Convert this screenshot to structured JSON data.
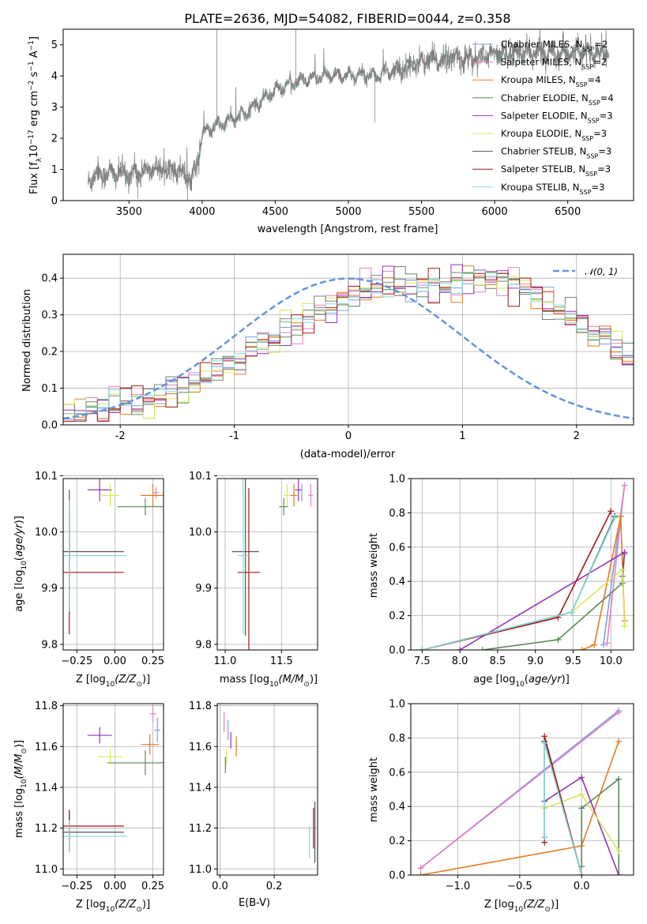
{
  "colors": {
    "c_miles": "#7fa0e0",
    "s_miles": "#e67fc2",
    "k_miles": "#e37b1e",
    "c_elodie": "#5a8a5a",
    "s_elodie": "#9434b4",
    "k_elodie": "#d6e85a",
    "c_stelib": "#808080",
    "s_stelib": "#a01818",
    "k_stelib": "#88d8d8",
    "normal": "#6495d8"
  },
  "chart_data": [
    {
      "type": "line",
      "id": "spectrum",
      "title": "PLATE=2636, MJD=54082, FIBERID=0044, z=0.358",
      "xlabel": "wavelength [Angstrom, rest frame]",
      "ylabel": "Flux [f$_\\lambda$10$^{-17}$ erg cm$^{-2}$ s$^{-1}$ A$^{-1}$]",
      "ylabel_parts": [
        "Flux [f",
        "λ",
        "10",
        "−17",
        " erg cm",
        "−2",
        " s",
        "−1",
        " A",
        "−1",
        "]"
      ],
      "xlim": [
        3050,
        6950
      ],
      "ylim": [
        0,
        5.5
      ],
      "xticks": [
        3500,
        4000,
        4500,
        5000,
        5500,
        6000,
        6500
      ],
      "yticks": [
        0,
        1,
        2,
        3,
        4,
        5
      ],
      "continuum": [
        [
          3220,
          0.6
        ],
        [
          3260,
          0.85
        ],
        [
          3400,
          0.88
        ],
        [
          3500,
          0.85
        ],
        [
          3600,
          0.95
        ],
        [
          3700,
          1.0
        ],
        [
          3800,
          1.05
        ],
        [
          3860,
          0.9
        ],
        [
          3930,
          0.7
        ],
        [
          3970,
          1.3
        ],
        [
          4000,
          2.1
        ],
        [
          4050,
          2.3
        ],
        [
          4150,
          2.5
        ],
        [
          4300,
          2.8
        ],
        [
          4400,
          3.2
        ],
        [
          4500,
          3.55
        ],
        [
          4600,
          3.75
        ],
        [
          4700,
          3.85
        ],
        [
          4800,
          3.95
        ],
        [
          4900,
          4.05
        ],
        [
          5000,
          4.0
        ],
        [
          5100,
          4.05
        ],
        [
          5200,
          4.0
        ],
        [
          5300,
          4.2
        ],
        [
          5400,
          4.3
        ],
        [
          5500,
          4.45
        ],
        [
          5600,
          4.5
        ],
        [
          5700,
          4.6
        ],
        [
          5800,
          4.55
        ],
        [
          5900,
          4.6
        ],
        [
          6000,
          4.7
        ],
        [
          6200,
          4.75
        ],
        [
          6400,
          4.75
        ],
        [
          6600,
          4.8
        ],
        [
          6700,
          4.7
        ]
      ],
      "legend": [
        {
          "label": "Chabrier MILES, N",
          "sub": "SSP",
          "val": "=2",
          "color": "#7fa0e0"
        },
        {
          "label": "Salpeter MILES, N",
          "sub": "SSP",
          "val": "=2",
          "color": "#e67fc2"
        },
        {
          "label": "Kroupa MILES, N",
          "sub": "SSP",
          "val": "=4",
          "color": "#e37b1e"
        },
        {
          "label": "Chabrier ELODIE, N",
          "sub": "SSP",
          "val": "=4",
          "color": "#5a8a5a"
        },
        {
          "label": "Salpeter ELODIE, N",
          "sub": "SSP",
          "val": "=3",
          "color": "#9434b4"
        },
        {
          "label": "Kroupa ELODIE, N",
          "sub": "SSP",
          "val": "=3",
          "color": "#d6e85a"
        },
        {
          "label": "Chabrier STELIB, N",
          "sub": "SSP",
          "val": "=3",
          "color": "#555555"
        },
        {
          "label": "Salpeter STELIB, N",
          "sub": "SSP",
          "val": "=3",
          "color": "#a01818"
        },
        {
          "label": "Kroupa STELIB, N",
          "sub": "SSP",
          "val": "=3",
          "color": "#88d8d8"
        }
      ]
    },
    {
      "type": "line",
      "id": "residuals",
      "xlabel": "(data-model)/error",
      "ylabel": "Normed distribution",
      "xlim": [
        -2.5,
        2.5
      ],
      "ylim": [
        0,
        0.465
      ],
      "xticks": [
        -2,
        -1,
        0,
        1,
        2
      ],
      "yticks": [
        0.0,
        0.1,
        0.2,
        0.3,
        0.4
      ],
      "legend": {
        "label": "𝒩(0, 1)",
        "color": "#6495d8"
      },
      "bin_width": 0.1,
      "envelope": [
        0.03,
        0.035,
        0.04,
        0.045,
        0.05,
        0.055,
        0.062,
        0.07,
        0.08,
        0.09,
        0.1,
        0.112,
        0.125,
        0.14,
        0.155,
        0.17,
        0.19,
        0.21,
        0.23,
        0.25,
        0.27,
        0.29,
        0.31,
        0.33,
        0.345,
        0.36,
        0.37,
        0.38,
        0.385,
        0.385,
        0.385,
        0.385,
        0.39,
        0.395,
        0.4,
        0.405,
        0.405,
        0.4,
        0.39,
        0.38,
        0.365,
        0.35,
        0.33,
        0.31,
        0.29,
        0.27,
        0.25,
        0.23,
        0.21,
        0.19,
        0.17,
        0.155,
        0.14,
        0.125,
        0.11,
        0.1,
        0.09,
        0.08,
        0.07,
        0.065,
        0.06
      ]
    },
    {
      "type": "scatter",
      "id": "age-vs-Z",
      "xlabel": "Z [log",
      "xlabel_parts": [
        "Z [log",
        "10",
        "(Z/Z",
        "⊙",
        ")]"
      ],
      "ylabel_parts": [
        "age  [log",
        "10",
        "(",
        "age/yr",
        ")]"
      ],
      "xlim": [
        -0.34,
        0.32
      ],
      "ylim": [
        9.79,
        10.095
      ],
      "xticks": [
        -0.25,
        0.0,
        0.25
      ],
      "xticklabels": [
        "−0.25",
        "0.00",
        "0.25"
      ],
      "yticks": [
        9.8,
        9.9,
        10.0,
        10.1
      ],
      "points": [
        {
          "x": -0.3,
          "y": 10.0,
          "xerr": 0.0,
          "yerr": 0.04,
          "color": "#7fa0e0"
        },
        {
          "x": 0.27,
          "y": 10.07,
          "xerr": 0.02,
          "yerr": 0.01,
          "color": "#e67fc2"
        },
        {
          "x": 0.25,
          "y": 10.065,
          "xerr": 0.08,
          "yerr": 0.02,
          "color": "#e37b1e"
        },
        {
          "x": 0.2,
          "y": 10.045,
          "xerr": 0.18,
          "yerr": 0.015,
          "color": "#5a8a5a"
        },
        {
          "x": -0.1,
          "y": 10.075,
          "xerr": 0.08,
          "yerr": 0.02,
          "color": "#9434b4"
        },
        {
          "x": -0.03,
          "y": 10.065,
          "xerr": 0.06,
          "yerr": 0.02,
          "color": "#d6e85a"
        },
        {
          "x": -0.3,
          "y": 9.965,
          "xerr": 0.36,
          "yerr": 0.11,
          "color": "#555555"
        },
        {
          "x": -0.3,
          "y": 9.928,
          "xerr": 0.36,
          "yerr": 0.11,
          "color": "#a01818"
        },
        {
          "x": -0.3,
          "y": 9.958,
          "xerr": 0.38,
          "yerr": 0.1,
          "color": "#88d8d8"
        }
      ]
    },
    {
      "type": "scatter",
      "id": "age-vs-mass",
      "xlabel_parts": [
        "mass [log",
        "10",
        "(M/M",
        "⊙",
        ")]"
      ],
      "xlim": [
        10.93,
        11.82
      ],
      "ylim": [
        9.79,
        10.095
      ],
      "xticks": [
        11.0,
        11.5
      ],
      "xticklabels": [
        "11.0",
        "11.5"
      ],
      "yticks": [
        9.8,
        9.9,
        10.0,
        10.1
      ],
      "points": [
        {
          "x": 11.68,
          "y": 10.07,
          "xerr": 0.0,
          "yerr": 0.015,
          "color": "#7fa0e0"
        },
        {
          "x": 11.76,
          "y": 10.065,
          "xerr": 0.02,
          "yerr": 0.02,
          "color": "#e67fc2"
        },
        {
          "x": 11.61,
          "y": 10.065,
          "xerr": 0.03,
          "yerr": 0.02,
          "color": "#e37b1e"
        },
        {
          "x": 11.52,
          "y": 10.045,
          "xerr": 0.04,
          "yerr": 0.015,
          "color": "#5a8a5a"
        },
        {
          "x": 11.65,
          "y": 10.075,
          "xerr": 0.03,
          "yerr": 0.02,
          "color": "#9434b4"
        },
        {
          "x": 11.55,
          "y": 10.065,
          "xerr": 0.03,
          "yerr": 0.02,
          "color": "#d6e85a"
        },
        {
          "x": 11.18,
          "y": 9.965,
          "xerr": 0.12,
          "yerr": 0.15,
          "color": "#555555"
        },
        {
          "x": 11.21,
          "y": 9.928,
          "xerr": 0.1,
          "yerr": 0.15,
          "color": "#a01818"
        },
        {
          "x": 11.16,
          "y": 9.958,
          "xerr": 0.05,
          "yerr": 0.14,
          "color": "#88d8d8"
        }
      ]
    },
    {
      "type": "line",
      "id": "weight-vs-age",
      "xlabel_parts": [
        "age  [log",
        "10",
        "(",
        "age/yr",
        ")]"
      ],
      "ylabel": "mass weight",
      "xlim": [
        7.35,
        10.3
      ],
      "ylim": [
        0.0,
        1.0
      ],
      "xticks": [
        7.5,
        8.0,
        8.5,
        9.0,
        9.5,
        10.0
      ],
      "xticklabels": [
        "7.5",
        "8.0",
        "8.5",
        "9.0",
        "9.5",
        "10.0"
      ],
      "yticks": [
        0.0,
        0.2,
        0.4,
        0.6,
        0.8,
        1.0
      ],
      "series": [
        {
          "color": "#7fa0e0",
          "points": [
            [
              9.9,
              0.03
            ],
            [
              10.18,
              0.96
            ]
          ]
        },
        {
          "color": "#e67fc2",
          "points": [
            [
              9.95,
              0.04
            ],
            [
              10.18,
              0.96
            ]
          ]
        },
        {
          "color": "#e37b1e",
          "points": [
            [
              9.62,
              0.0
            ],
            [
              9.78,
              0.03
            ],
            [
              10.13,
              0.78
            ],
            [
              10.18,
              0.17
            ]
          ]
        },
        {
          "color": "#5a8a5a",
          "points": [
            [
              8.3,
              0.0
            ],
            [
              9.3,
              0.06
            ],
            [
              10.15,
              0.39
            ],
            [
              10.18,
              0.56
            ]
          ]
        },
        {
          "color": "#9434b4",
          "points": [
            [
              8.0,
              0.0
            ],
            [
              10.18,
              0.57
            ],
            [
              10.15,
              0.43
            ]
          ]
        },
        {
          "color": "#d6e85a",
          "points": [
            [
              9.48,
              0.22
            ],
            [
              10.15,
              0.47
            ],
            [
              10.18,
              0.14
            ]
          ]
        },
        {
          "color": "#555555",
          "points": [
            [
              7.5,
              0.0
            ],
            [
              9.48,
              0.22
            ],
            [
              10.05,
              0.78
            ]
          ]
        },
        {
          "color": "#a01818",
          "points": [
            [
              7.5,
              0.0
            ],
            [
              9.3,
              0.19
            ],
            [
              10.0,
              0.81
            ]
          ]
        },
        {
          "color": "#88d8d8",
          "points": [
            [
              7.5,
              0.0
            ],
            [
              9.48,
              0.22
            ],
            [
              10.05,
              0.77
            ]
          ]
        }
      ]
    },
    {
      "type": "scatter",
      "id": "mass-vs-Z",
      "xlabel_parts": [
        "Z [log",
        "10",
        "(Z/Z",
        "⊙",
        ")]"
      ],
      "ylabel_parts": [
        "mass [log",
        "10",
        "(M/M",
        "⊙",
        ")]"
      ],
      "xlim": [
        -0.34,
        0.32
      ],
      "ylim": [
        10.97,
        11.81
      ],
      "xticks": [
        -0.25,
        0.0,
        0.25
      ],
      "xticklabels": [
        "−0.25",
        "0.00",
        "0.25"
      ],
      "yticks": [
        11.0,
        11.2,
        11.4,
        11.6,
        11.8
      ],
      "points": [
        {
          "x": 0.28,
          "y": 11.68,
          "xerr": 0.02,
          "yerr": 0.06,
          "color": "#7fa0e0"
        },
        {
          "x": 0.25,
          "y": 11.76,
          "xerr": 0.02,
          "yerr": 0.04,
          "color": "#e67fc2"
        },
        {
          "x": 0.23,
          "y": 11.61,
          "xerr": 0.06,
          "yerr": 0.05,
          "color": "#e37b1e"
        },
        {
          "x": 0.2,
          "y": 11.52,
          "xerr": 0.25,
          "yerr": 0.06,
          "color": "#5a8a5a"
        },
        {
          "x": -0.1,
          "y": 11.655,
          "xerr": 0.08,
          "yerr": 0.04,
          "color": "#9434b4"
        },
        {
          "x": -0.03,
          "y": 11.55,
          "xerr": 0.08,
          "yerr": 0.04,
          "color": "#d6e85a"
        },
        {
          "x": -0.3,
          "y": 11.18,
          "xerr": 0.36,
          "yerr": 0.1,
          "color": "#555555"
        },
        {
          "x": -0.3,
          "y": 11.21,
          "xerr": 0.36,
          "yerr": 0.08,
          "color": "#a01818"
        },
        {
          "x": -0.3,
          "y": 11.16,
          "xerr": 0.38,
          "yerr": 0.08,
          "color": "#88d8d8"
        }
      ]
    },
    {
      "type": "scatter",
      "id": "mass-vs-ebv",
      "xlabel": "E(B-V)",
      "xlim": [
        -0.01,
        0.36
      ],
      "ylim": [
        10.97,
        11.81
      ],
      "xticks": [
        0.0,
        0.2
      ],
      "xticklabels": [
        "0.0",
        "0.2"
      ],
      "yticks": [
        11.0,
        11.2,
        11.4,
        11.6,
        11.8
      ],
      "points": [
        {
          "x": 0.03,
          "y": 11.68,
          "xerr": 0.0,
          "yerr": 0.05,
          "color": "#7fa0e0"
        },
        {
          "x": 0.015,
          "y": 11.72,
          "xerr": 0.0,
          "yerr": 0.05,
          "color": "#e67fc2"
        },
        {
          "x": 0.06,
          "y": 11.6,
          "xerr": 0.0,
          "yerr": 0.05,
          "color": "#e37b1e"
        },
        {
          "x": 0.02,
          "y": 11.51,
          "xerr": 0.0,
          "yerr": 0.04,
          "color": "#5a8a5a"
        },
        {
          "x": 0.04,
          "y": 11.63,
          "xerr": 0.0,
          "yerr": 0.04,
          "color": "#9434b4"
        },
        {
          "x": 0.025,
          "y": 11.55,
          "xerr": 0.0,
          "yerr": 0.04,
          "color": "#d6e85a"
        },
        {
          "x": 0.35,
          "y": 11.18,
          "xerr": 0.0,
          "yerr": 0.15,
          "color": "#555555"
        },
        {
          "x": 0.345,
          "y": 11.2,
          "xerr": 0.0,
          "yerr": 0.1,
          "color": "#a01818"
        },
        {
          "x": 0.33,
          "y": 11.13,
          "xerr": 0.0,
          "yerr": 0.08,
          "color": "#88d8d8"
        }
      ]
    },
    {
      "type": "line",
      "id": "weight-vs-Z",
      "xlabel_parts": [
        "Z [log",
        "10",
        "(Z/Z",
        "⊙",
        ")]"
      ],
      "ylabel": "mass weight",
      "xlim": [
        -1.38,
        0.42
      ],
      "ylim": [
        0.0,
        1.0
      ],
      "xticks": [
        -1.0,
        -0.5,
        0.0
      ],
      "xticklabels": [
        "−1.0",
        "−0.5",
        "0.0"
      ],
      "yticks": [
        0.0,
        0.2,
        0.4,
        0.6,
        0.8,
        1.0
      ],
      "series": [
        {
          "color": "#7fa0e0",
          "points": [
            [
              -1.3,
              0.04
            ],
            [
              0.3,
              0.96
            ]
          ]
        },
        {
          "color": "#e67fc2",
          "points": [
            [
              -1.3,
              0.04
            ],
            [
              0.3,
              0.95
            ]
          ]
        },
        {
          "color": "#e37b1e",
          "points": [
            [
              -1.3,
              0.0
            ],
            [
              0.0,
              0.17
            ],
            [
              0.3,
              0.78
            ]
          ]
        },
        {
          "color": "#5a8a5a",
          "points": [
            [
              0.0,
              0.05
            ],
            [
              0.0,
              0.39
            ],
            [
              0.3,
              0.56
            ],
            [
              0.3,
              0.0
            ]
          ]
        },
        {
          "color": "#9434b4",
          "points": [
            [
              -0.3,
              0.43
            ],
            [
              0.0,
              0.57
            ],
            [
              0.3,
              0.0
            ]
          ]
        },
        {
          "color": "#d6e85a",
          "points": [
            [
              -0.3,
              0.39
            ],
            [
              0.0,
              0.47
            ],
            [
              0.3,
              0.14
            ]
          ]
        },
        {
          "color": "#555555",
          "points": [
            [
              -0.3,
              0.22
            ],
            [
              -0.3,
              0.78
            ],
            [
              0.0,
              0.0
            ]
          ]
        },
        {
          "color": "#a01818",
          "points": [
            [
              -0.3,
              0.19
            ],
            [
              -0.3,
              0.81
            ],
            [
              0.0,
              0.0
            ]
          ]
        },
        {
          "color": "#88d8d8",
          "points": [
            [
              -0.3,
              0.22
            ],
            [
              -0.3,
              0.77
            ],
            [
              0.0,
              0.0
            ]
          ]
        }
      ]
    }
  ]
}
